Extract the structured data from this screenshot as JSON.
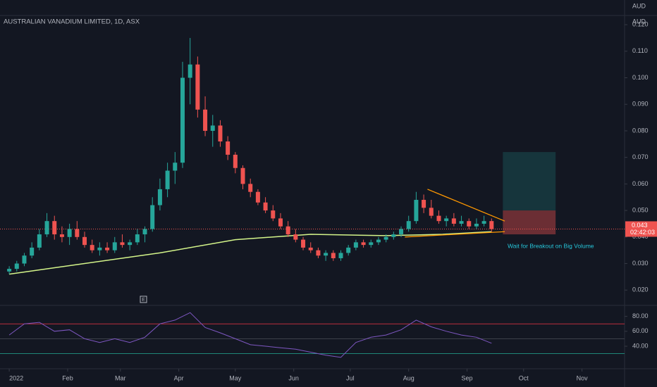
{
  "chart_data": {
    "type": "candlestick",
    "title": "AUSTRALIAN VANADIUM LIMITED, 1D, ASX",
    "currency": "AUD",
    "annotation": "Wait for Breakout on Big Volume",
    "up_color": "#26a69a",
    "down_color": "#ef5350",
    "xlim": [
      -4.9,
      326.6
    ],
    "xticks": [
      {
        "value": 0,
        "label": "2022"
      },
      {
        "value": 31,
        "label": "Feb"
      },
      {
        "value": 59,
        "label": "Mar"
      },
      {
        "value": 90,
        "label": "Apr"
      },
      {
        "value": 120,
        "label": "May"
      },
      {
        "value": 151,
        "label": "Jun"
      },
      {
        "value": 181,
        "label": "Jul"
      },
      {
        "value": 212,
        "label": "Aug"
      },
      {
        "value": 243,
        "label": "Sep"
      },
      {
        "value": 273,
        "label": "Oct"
      },
      {
        "value": 304,
        "label": "Nov"
      }
    ],
    "ylim": [
      0.0145,
      0.1232
    ],
    "yticks": [
      {
        "value": 0.12,
        "label": "0.120"
      },
      {
        "value": 0.11,
        "label": "0.110"
      },
      {
        "value": 0.1,
        "label": "0.100"
      },
      {
        "value": 0.09,
        "label": "0.090"
      },
      {
        "value": 0.08,
        "label": "0.080"
      },
      {
        "value": 0.07,
        "label": "0.070"
      },
      {
        "value": 0.06,
        "label": "0.060"
      },
      {
        "value": 0.05,
        "label": "0.050"
      },
      {
        "value": 0.04,
        "label": "0.040"
      },
      {
        "value": 0.03,
        "label": "0.030"
      },
      {
        "value": 0.02,
        "label": "0.020"
      }
    ],
    "x": [
      0,
      4,
      8,
      12,
      16,
      20,
      24,
      28,
      32,
      36,
      40,
      44,
      48,
      52,
      56,
      60,
      64,
      68,
      72,
      76,
      80,
      84,
      88,
      92,
      96,
      100,
      104,
      108,
      112,
      116,
      120,
      124,
      128,
      132,
      136,
      140,
      144,
      148,
      152,
      156,
      160,
      164,
      168,
      172,
      176,
      180,
      184,
      188,
      192,
      196,
      200,
      204,
      208,
      212,
      216,
      220,
      224,
      228,
      232,
      236,
      240,
      244,
      248,
      252,
      256
    ],
    "open": [
      0.027,
      0.028,
      0.03,
      0.033,
      0.036,
      0.041,
      0.046,
      0.041,
      0.04,
      0.043,
      0.04,
      0.037,
      0.035,
      0.036,
      0.035,
      0.038,
      0.037,
      0.038,
      0.041,
      0.043,
      0.052,
      0.058,
      0.065,
      0.068,
      0.1,
      0.105,
      0.088,
      0.08,
      0.082,
      0.076,
      0.071,
      0.066,
      0.06,
      0.057,
      0.053,
      0.05,
      0.047,
      0.044,
      0.041,
      0.039,
      0.036,
      0.035,
      0.033,
      0.034,
      0.032,
      0.034,
      0.036,
      0.038,
      0.037,
      0.038,
      0.039,
      0.04,
      0.041,
      0.043,
      0.046,
      0.054,
      0.051,
      0.048,
      0.046,
      0.047,
      0.045,
      0.046,
      0.044,
      0.045,
      0.046
    ],
    "high": [
      0.029,
      0.031,
      0.034,
      0.038,
      0.043,
      0.049,
      0.048,
      0.044,
      0.045,
      0.046,
      0.042,
      0.039,
      0.038,
      0.038,
      0.04,
      0.041,
      0.039,
      0.043,
      0.044,
      0.055,
      0.062,
      0.068,
      0.072,
      0.106,
      0.115,
      0.108,
      0.093,
      0.086,
      0.084,
      0.078,
      0.072,
      0.067,
      0.062,
      0.058,
      0.055,
      0.052,
      0.049,
      0.046,
      0.043,
      0.04,
      0.038,
      0.036,
      0.035,
      0.035,
      0.035,
      0.037,
      0.039,
      0.039,
      0.039,
      0.04,
      0.041,
      0.042,
      0.044,
      0.048,
      0.057,
      0.056,
      0.054,
      0.05,
      0.048,
      0.049,
      0.048,
      0.047,
      0.047,
      0.048,
      0.047
    ],
    "low": [
      0.026,
      0.027,
      0.029,
      0.032,
      0.035,
      0.04,
      0.039,
      0.038,
      0.037,
      0.039,
      0.036,
      0.034,
      0.033,
      0.034,
      0.034,
      0.036,
      0.035,
      0.037,
      0.038,
      0.042,
      0.05,
      0.055,
      0.06,
      0.066,
      0.09,
      0.085,
      0.078,
      0.074,
      0.074,
      0.069,
      0.064,
      0.058,
      0.055,
      0.052,
      0.049,
      0.046,
      0.043,
      0.04,
      0.038,
      0.035,
      0.034,
      0.032,
      0.031,
      0.031,
      0.031,
      0.033,
      0.035,
      0.036,
      0.036,
      0.037,
      0.038,
      0.039,
      0.04,
      0.042,
      0.045,
      0.049,
      0.047,
      0.045,
      0.044,
      0.044,
      0.044,
      0.043,
      0.043,
      0.044,
      0.042
    ],
    "close": [
      0.028,
      0.03,
      0.033,
      0.036,
      0.041,
      0.046,
      0.041,
      0.04,
      0.043,
      0.04,
      0.037,
      0.035,
      0.036,
      0.035,
      0.038,
      0.037,
      0.038,
      0.041,
      0.043,
      0.052,
      0.058,
      0.065,
      0.068,
      0.1,
      0.105,
      0.088,
      0.08,
      0.082,
      0.076,
      0.071,
      0.066,
      0.06,
      0.057,
      0.053,
      0.05,
      0.047,
      0.044,
      0.041,
      0.039,
      0.036,
      0.035,
      0.033,
      0.034,
      0.032,
      0.034,
      0.036,
      0.038,
      0.037,
      0.038,
      0.039,
      0.04,
      0.041,
      0.043,
      0.046,
      0.054,
      0.051,
      0.048,
      0.046,
      0.047,
      0.045,
      0.046,
      0.044,
      0.045,
      0.046,
      0.043
    ],
    "ma": {
      "color": "#d4f58a",
      "x": [
        0,
        40,
        80,
        120,
        160,
        200,
        230,
        256
      ],
      "values": [
        0.026,
        0.03,
        0.034,
        0.039,
        0.041,
        0.0405,
        0.041,
        0.042
      ]
    },
    "last_price": {
      "value": 0.043,
      "label": "0.043"
    },
    "countdown": "02:42:03",
    "upper_trend": {
      "x": [
        222,
        263
      ],
      "values": [
        0.058,
        0.046
      ]
    },
    "lower_trend": {
      "x": [
        210,
        263
      ],
      "values": [
        0.04,
        0.042
      ]
    },
    "position": {
      "x": [
        262,
        290
      ],
      "stop": 0.041,
      "entry": 0.05,
      "target": 0.072
    },
    "rsi": {
      "color": "#7e57c2",
      "ylim": [
        10.8,
        93.8
      ],
      "yticks": [
        {
          "value": 80,
          "label": "80.00"
        },
        {
          "value": 60,
          "label": "60.00"
        },
        {
          "value": 40,
          "label": "40.00"
        }
      ],
      "levels": [
        70,
        50,
        30
      ],
      "x": [
        0,
        8,
        16,
        24,
        32,
        40,
        48,
        56,
        64,
        72,
        80,
        88,
        96,
        104,
        112,
        120,
        128,
        136,
        144,
        152,
        160,
        168,
        176,
        184,
        192,
        200,
        208,
        216,
        224,
        232,
        240,
        248,
        256
      ],
      "values": [
        55,
        70,
        72,
        60,
        62,
        50,
        45,
        50,
        45,
        52,
        70,
        75,
        85,
        65,
        58,
        50,
        42,
        40,
        38,
        36,
        32,
        28,
        25,
        45,
        52,
        55,
        62,
        75,
        66,
        60,
        55,
        52,
        44
      ]
    }
  }
}
